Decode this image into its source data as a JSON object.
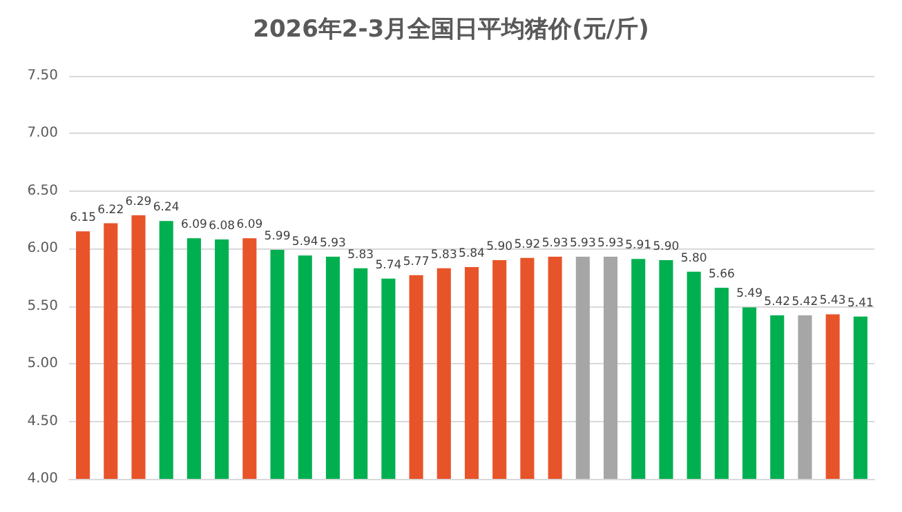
{
  "chart_data": {
    "type": "bar",
    "title": "2026年2-3月全国日平均猪价(元/斤)",
    "categories": [
      null,
      null,
      null,
      null,
      null,
      null,
      null,
      null,
      null,
      null,
      null,
      null,
      null,
      null,
      null,
      null,
      null,
      null,
      null,
      null,
      null,
      null,
      null,
      null,
      null,
      null,
      null,
      null,
      null
    ],
    "values": [
      6.15,
      6.22,
      6.29,
      6.24,
      6.09,
      6.08,
      6.09,
      5.99,
      5.94,
      5.93,
      5.83,
      5.74,
      5.77,
      5.83,
      5.84,
      5.9,
      5.92,
      5.93,
      5.93,
      5.93,
      5.91,
      5.9,
      5.8,
      5.66,
      5.49,
      5.42,
      5.42,
      5.43,
      5.41
    ],
    "value_labels": [
      "6.15",
      "6.22",
      "6.29",
      "6.24",
      "6.09",
      "6.08",
      "6.09",
      "5.99",
      "5.94",
      "5.93",
      "5.83",
      "5.74",
      "5.77",
      "5.83",
      "5.84",
      "5.90",
      "5.92",
      "5.93",
      "5.93",
      "5.93",
      "5.91",
      "5.90",
      "5.80",
      "5.66",
      "5.49",
      "5.42",
      "5.42",
      "5.43",
      "5.41"
    ],
    "colors": [
      "#e8542a",
      "#e8542a",
      "#e8542a",
      "#00b050",
      "#00b050",
      "#00b050",
      "#e8542a",
      "#00b050",
      "#00b050",
      "#00b050",
      "#00b050",
      "#00b050",
      "#e8542a",
      "#e8542a",
      "#e8542a",
      "#e8542a",
      "#e8542a",
      "#e8542a",
      "#a6a6a6",
      "#a6a6a6",
      "#00b050",
      "#00b050",
      "#00b050",
      "#00b050",
      "#00b050",
      "#00b050",
      "#a6a6a6",
      "#e8542a",
      "#00b050"
    ],
    "ylim": [
      4,
      7.5
    ],
    "yticks": [
      {
        "value": 4,
        "label": "4.00"
      },
      {
        "value": 4.5,
        "label": "4.50"
      },
      {
        "value": 5,
        "label": "5.00"
      },
      {
        "value": 5.5,
        "label": "5.50"
      },
      {
        "value": 6,
        "label": "6.00"
      },
      {
        "value": 6.5,
        "label": "6.50"
      },
      {
        "value": 7,
        "label": "7.00"
      },
      {
        "value": 7.5,
        "label": "7.50"
      }
    ],
    "grid": "y"
  }
}
